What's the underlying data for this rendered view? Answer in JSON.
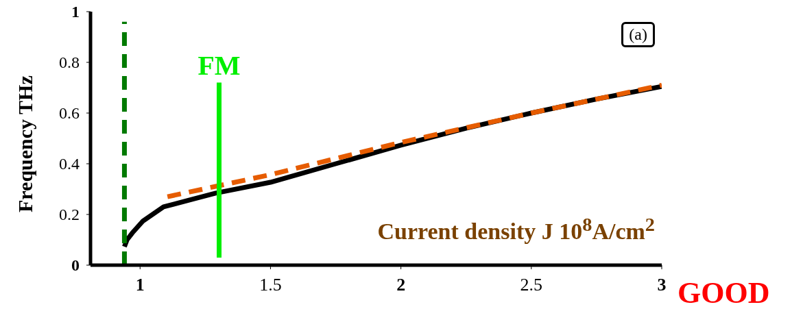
{
  "chart_data": {
    "type": "line",
    "xlabel": "Current density J 10$^{8}$A/cm$^{2}$",
    "ylabel": "Frequency THz",
    "xlim": [
      0.81,
      3
    ],
    "xticks": [
      1,
      1.5,
      2,
      2.5,
      3
    ],
    "ylim": [
      0,
      1
    ],
    "yticks": [
      0,
      0.2,
      0.4,
      0.6,
      0.8,
      1
    ],
    "legend": false,
    "grid": false,
    "annotations": [
      "(a)",
      "GOOD"
    ],
    "series": [
      {
        "color": "#000000",
        "line_style": "solid",
        "x": [
          0.94,
          0.95,
          0.97,
          1.01,
          1.09,
          1.2,
          1.29,
          1.5,
          1.75,
          2,
          2.25,
          2.5,
          2.75,
          3
        ],
        "values": [
          0.073,
          0.1,
          0.127,
          0.173,
          0.23,
          0.26,
          0.284,
          0.327,
          0.4,
          0.473,
          0.54,
          0.6,
          0.655,
          0.705
        ]
      },
      {
        "color": "#e65c00",
        "line_style": "dashed",
        "x": [
          1.105,
          1.5,
          2,
          2.5,
          3
        ],
        "values": [
          0.27,
          0.357,
          0.484,
          0.6,
          0.71
        ]
      },
      {
        "color": "#007a00",
        "line_style": "dashed",
        "x": [
          0.94,
          0.94
        ],
        "values": [
          0,
          0.96
        ]
      },
      {
        "name": "FM",
        "color": "#00ee00",
        "line_style": "solid",
        "x": [
          1.303,
          1.303
        ],
        "values": [
          0.03,
          0.72
        ]
      }
    ]
  }
}
